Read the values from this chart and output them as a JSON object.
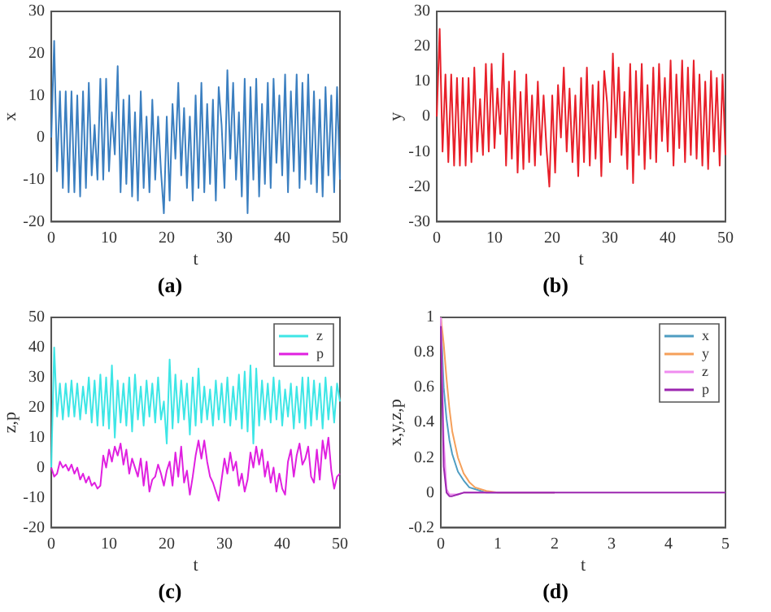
{
  "chart_data": [
    {
      "type": "line",
      "title": "(a)",
      "xlabel": "t",
      "ylabel": "x",
      "marker": "none",
      "grid": false,
      "x": [
        0,
        0.5,
        1,
        1.5,
        2,
        2.5,
        3,
        3.5,
        4,
        4.5,
        5,
        5.5,
        6,
        6.5,
        7,
        7.5,
        8,
        8.5,
        9,
        9.5,
        10,
        10.5,
        11,
        11.5,
        12,
        12.5,
        13,
        13.5,
        14,
        14.5,
        15,
        15.5,
        16,
        16.5,
        17,
        17.5,
        18,
        18.5,
        19,
        19.5,
        20,
        20.5,
        21,
        21.5,
        22,
        22.5,
        23,
        23.5,
        24,
        24.5,
        25,
        25.5,
        26,
        26.5,
        27,
        27.5,
        28,
        28.5,
        29,
        29.5,
        30,
        30.5,
        31,
        31.5,
        32,
        32.5,
        33,
        33.5,
        34,
        34.5,
        35,
        35.5,
        36,
        36.5,
        37,
        37.5,
        38,
        38.5,
        39,
        39.5,
        40,
        40.5,
        41,
        41.5,
        42,
        42.5,
        43,
        43.5,
        44,
        44.5,
        45,
        45.5,
        46,
        46.5,
        47,
        47.5,
        48,
        48.5,
        49,
        49.5,
        50
      ],
      "xlim": [
        0,
        50
      ],
      "xticks": [
        0,
        10,
        20,
        30,
        40,
        50
      ],
      "ylim": [
        -20,
        30
      ],
      "yticks": [
        -20,
        -10,
        0,
        10,
        20,
        30
      ],
      "series": [
        {
          "color": "#3b7fc0",
          "values": [
            0,
            23,
            -8,
            11,
            -12,
            11,
            -13,
            11,
            -13,
            10,
            -14,
            11,
            -12,
            13,
            -9,
            3,
            -10,
            14,
            -10,
            14,
            -8,
            6,
            -4,
            17,
            -13,
            9,
            -11,
            10,
            -14,
            6,
            -15,
            11,
            -12,
            5,
            -13,
            9,
            -10,
            5,
            -8,
            -18,
            5,
            -15,
            8,
            -5,
            13,
            -9,
            7,
            -12,
            5,
            -15,
            10,
            -12,
            13,
            -13,
            8,
            -11,
            9,
            -15,
            12,
            3,
            -12,
            16,
            -5,
            13,
            -10,
            6,
            -14,
            14,
            -18,
            12,
            -10,
            14,
            -14,
            8,
            -11,
            13,
            -12,
            14,
            -6,
            10,
            -9,
            15,
            -13,
            11,
            -8,
            15,
            -12,
            13,
            -10,
            15,
            -11,
            11,
            -13,
            9,
            -14,
            12,
            -9,
            10,
            -13,
            12,
            -10
          ]
        }
      ]
    },
    {
      "type": "line",
      "title": "(b)",
      "xlabel": "t",
      "ylabel": "y",
      "marker": "none",
      "grid": false,
      "x": [
        0,
        0.5,
        1,
        1.5,
        2,
        2.5,
        3,
        3.5,
        4,
        4.5,
        5,
        5.5,
        6,
        6.5,
        7,
        7.5,
        8,
        8.5,
        9,
        9.5,
        10,
        10.5,
        11,
        11.5,
        12,
        12.5,
        13,
        13.5,
        14,
        14.5,
        15,
        15.5,
        16,
        16.5,
        17,
        17.5,
        18,
        18.5,
        19,
        19.5,
        20,
        20.5,
        21,
        21.5,
        22,
        22.5,
        23,
        23.5,
        24,
        24.5,
        25,
        25.5,
        26,
        26.5,
        27,
        27.5,
        28,
        28.5,
        29,
        29.5,
        30,
        30.5,
        31,
        31.5,
        32,
        32.5,
        33,
        33.5,
        34,
        34.5,
        35,
        35.5,
        36,
        36.5,
        37,
        37.5,
        38,
        38.5,
        39,
        39.5,
        40,
        40.5,
        41,
        41.5,
        42,
        42.5,
        43,
        43.5,
        44,
        44.5,
        45,
        45.5,
        46,
        46.5,
        47,
        47.5,
        48,
        48.5,
        49,
        49.5,
        50
      ],
      "xlim": [
        0,
        50
      ],
      "xticks": [
        0,
        10,
        20,
        30,
        40,
        50
      ],
      "ylim": [
        -30,
        30
      ],
      "yticks": [
        -30,
        -20,
        -10,
        0,
        10,
        20,
        30
      ],
      "series": [
        {
          "color": "#e8202a",
          "values": [
            0,
            25,
            -10,
            12,
            -13,
            12,
            -14,
            11,
            -14,
            11,
            -14,
            11,
            -13,
            14,
            -10,
            5,
            -11,
            15,
            -10,
            15,
            -9,
            8,
            -5,
            18,
            -14,
            10,
            -12,
            13,
            -16,
            7,
            -15,
            12,
            -13,
            6,
            -14,
            10,
            -11,
            6,
            -9,
            -20,
            6,
            -16,
            9,
            -6,
            14,
            -10,
            8,
            -13,
            6,
            -17,
            11,
            -13,
            14,
            -14,
            9,
            -12,
            10,
            -17,
            13,
            4,
            -13,
            18,
            -6,
            14,
            -11,
            7,
            -15,
            15,
            -19,
            13,
            -11,
            15,
            -15,
            9,
            -12,
            14,
            -13,
            15,
            -7,
            11,
            -10,
            16,
            -14,
            12,
            -9,
            16,
            -13,
            14,
            -11,
            16,
            -12,
            12,
            -14,
            10,
            -15,
            13,
            -10,
            11,
            -14,
            12,
            -11
          ]
        }
      ]
    },
    {
      "type": "line",
      "title": "(c)",
      "xlabel": "t",
      "ylabel": "z,p",
      "marker": "none",
      "grid": false,
      "legend": "top right",
      "x": [
        0,
        0.5,
        1,
        1.5,
        2,
        2.5,
        3,
        3.5,
        4,
        4.5,
        5,
        5.5,
        6,
        6.5,
        7,
        7.5,
        8,
        8.5,
        9,
        9.5,
        10,
        10.5,
        11,
        11.5,
        12,
        12.5,
        13,
        13.5,
        14,
        14.5,
        15,
        15.5,
        16,
        16.5,
        17,
        17.5,
        18,
        18.5,
        19,
        19.5,
        20,
        20.5,
        21,
        21.5,
        22,
        22.5,
        23,
        23.5,
        24,
        24.5,
        25,
        25.5,
        26,
        26.5,
        27,
        27.5,
        28,
        28.5,
        29,
        29.5,
        30,
        30.5,
        31,
        31.5,
        32,
        32.5,
        33,
        33.5,
        34,
        34.5,
        35,
        35.5,
        36,
        36.5,
        37,
        37.5,
        38,
        38.5,
        39,
        39.5,
        40,
        40.5,
        41,
        41.5,
        42,
        42.5,
        43,
        43.5,
        44,
        44.5,
        45,
        45.5,
        46,
        46.5,
        47,
        47.5,
        48,
        48.5,
        49,
        49.5,
        50
      ],
      "xlim": [
        0,
        50
      ],
      "xticks": [
        0,
        10,
        20,
        30,
        40,
        50
      ],
      "ylim": [
        -20,
        50
      ],
      "yticks": [
        -20,
        -10,
        0,
        10,
        20,
        30,
        40,
        50
      ],
      "series": [
        {
          "name": "z",
          "color": "#3ee6e6",
          "values": [
            0,
            40,
            17,
            28,
            16,
            28,
            17,
            29,
            17,
            28,
            16,
            27,
            18,
            30,
            15,
            29,
            14,
            31,
            14,
            30,
            13,
            34,
            10,
            29,
            15,
            28,
            14,
            30,
            12,
            31,
            16,
            27,
            14,
            29,
            17,
            28,
            15,
            30,
            16,
            22,
            8,
            36,
            13,
            31,
            15,
            29,
            16,
            28,
            11,
            30,
            14,
            33,
            15,
            27,
            16,
            26,
            14,
            29,
            16,
            28,
            15,
            30,
            14,
            27,
            16,
            31,
            13,
            32,
            12,
            34,
            8,
            33,
            14,
            29,
            16,
            28,
            15,
            30,
            16,
            29,
            14,
            26,
            17,
            28,
            13,
            27,
            15,
            30,
            13,
            30,
            14,
            29,
            16,
            28,
            13,
            30,
            16,
            27,
            15,
            28,
            22
          ]
        },
        {
          "name": "p",
          "color": "#e020e0",
          "values": [
            0,
            -3,
            -2,
            2,
            0,
            1,
            -1,
            1,
            -2,
            0,
            -4,
            -2,
            -5,
            -3,
            -6,
            -5,
            -7,
            -6,
            4,
            0,
            6,
            2,
            7,
            4,
            8,
            1,
            6,
            -2,
            3,
            0,
            -3,
            3,
            -6,
            2,
            -8,
            -4,
            -3,
            1,
            -2,
            -6,
            -1,
            2,
            -6,
            5,
            -3,
            7,
            -5,
            -1,
            -9,
            -3,
            4,
            9,
            3,
            9,
            2,
            -3,
            -5,
            -8,
            -11,
            -4,
            3,
            -2,
            5,
            -1,
            2,
            -6,
            -2,
            -8,
            -4,
            5,
            0,
            7,
            1,
            6,
            -3,
            2,
            -5,
            0,
            -8,
            -2,
            -7,
            -9,
            2,
            6,
            -3,
            4,
            8,
            1,
            3,
            7,
            -3,
            -5,
            6,
            -4,
            9,
            3,
            10,
            -1,
            -7,
            -3,
            -2
          ]
        }
      ]
    },
    {
      "type": "line",
      "title": "(d)",
      "xlabel": "t",
      "ylabel": "x,y,z,p",
      "marker": "none",
      "grid": false,
      "legend": "top right",
      "x": [
        0,
        0.05,
        0.1,
        0.15,
        0.2,
        0.3,
        0.4,
        0.5,
        0.6,
        0.8,
        1,
        2,
        3,
        4,
        5
      ],
      "xlim": [
        0,
        5
      ],
      "xticks": [
        0,
        1,
        2,
        3,
        4,
        5
      ],
      "ylim": [
        -0.2,
        1
      ],
      "yticks": [
        -0.2,
        0,
        0.2,
        0.4,
        0.6,
        0.8,
        1
      ],
      "series": [
        {
          "name": "x",
          "color": "#4f9dc2",
          "values": [
            1,
            0.6,
            0.42,
            0.3,
            0.22,
            0.12,
            0.07,
            0.03,
            0.02,
            0,
            0,
            0,
            null,
            null,
            null
          ]
        },
        {
          "name": "y",
          "color": "#f5a05a",
          "values": [
            1,
            0.85,
            0.65,
            0.48,
            0.35,
            0.2,
            0.11,
            0.06,
            0.03,
            0.01,
            0,
            0,
            null,
            null,
            null
          ]
        },
        {
          "name": "z",
          "color": "#f08cf0",
          "values": [
            1,
            0.3,
            0.02,
            -0.01,
            -0.01,
            -0.01,
            0,
            0,
            0,
            0,
            0,
            0,
            null,
            null,
            null
          ]
        },
        {
          "name": "p",
          "color": "#9c27b0",
          "values": [
            0.95,
            0.15,
            0,
            -0.02,
            -0.02,
            -0.01,
            0,
            0,
            0,
            0,
            0,
            0,
            0,
            0,
            0
          ]
        }
      ]
    }
  ]
}
